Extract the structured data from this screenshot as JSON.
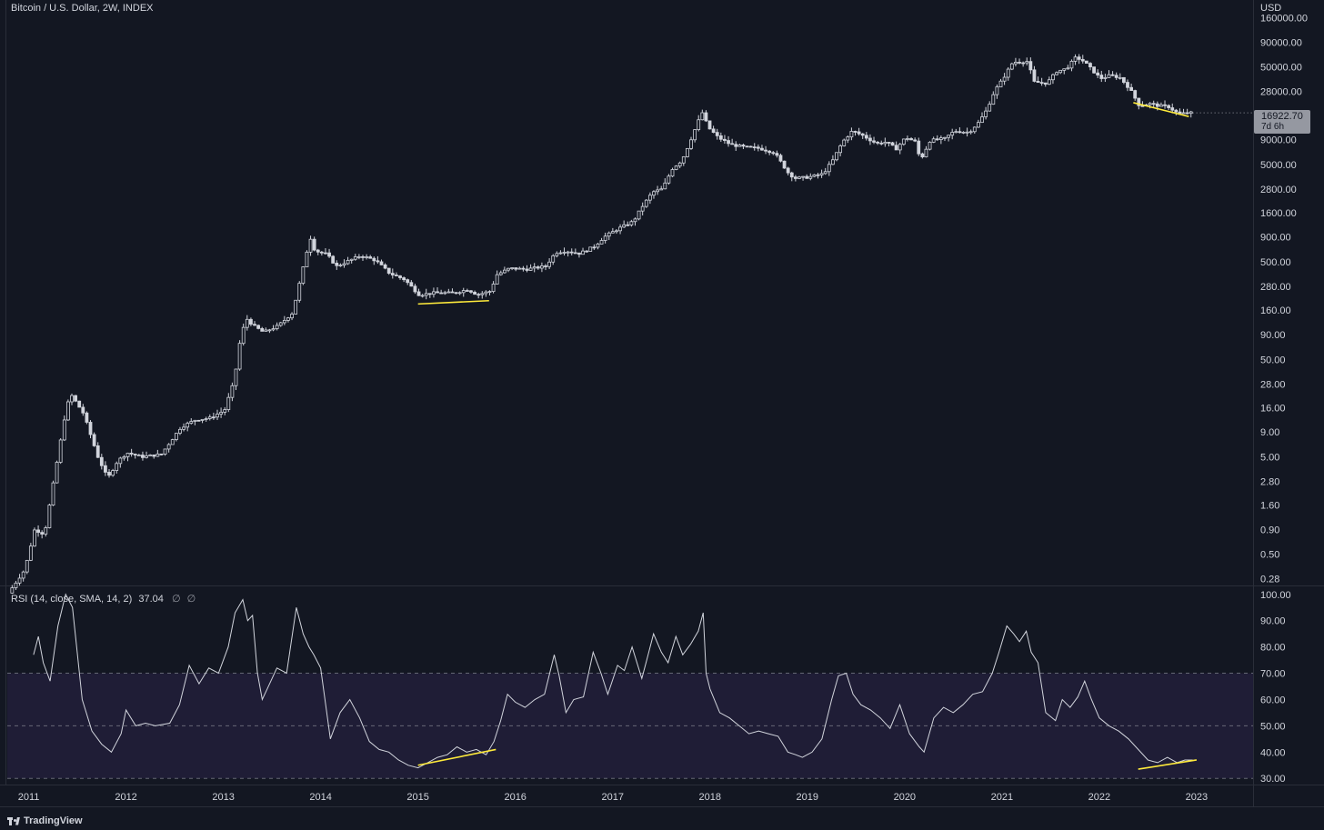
{
  "header": {
    "symbol_title": "Bitcoin / U.S. Dollar, 2W, INDEX",
    "currency": "USD"
  },
  "price_badge": {
    "price": "16922.70",
    "countdown": "7d 6h"
  },
  "rsi_header": {
    "label": "RSI (14, close, SMA, 14, 2)",
    "value": "37.04",
    "null1": "∅",
    "null2": "∅"
  },
  "footer": {
    "brand": "TradingView"
  },
  "colors": {
    "background": "#131722",
    "candle": "#d1d4dc",
    "trendline": "#ffeb3b",
    "rsi_band": "#1f1d36",
    "rsi_line": "#d1d4dc",
    "grid_dashed": "#787b86"
  },
  "chart_data": [
    {
      "type": "candlestick",
      "title": "Bitcoin / U.S. Dollar, 2W, INDEX",
      "x_axis_labels": [
        "2011",
        "2012",
        "2013",
        "2014",
        "2015",
        "2016",
        "2017",
        "2018",
        "2019",
        "2020",
        "2021",
        "2022",
        "2023"
      ],
      "y_axis_labels": [
        "160000.00",
        "90000.00",
        "50000.00",
        "28000.00",
        "16922.70",
        "9000.00",
        "5000.00",
        "2800.00",
        "1600.00",
        "900.00",
        "500.00",
        "280.00",
        "160.00",
        "90.00",
        "50.00",
        "28.00",
        "16.00",
        "9.00",
        "5.00",
        "2.80",
        "1.60",
        "0.90",
        "0.50",
        "0.28"
      ],
      "y_scale": "log",
      "ylim": [
        0.25,
        180000
      ],
      "xlim": [
        2010.78,
        2023.58
      ],
      "last_price": 16922.7,
      "series": [
        {
          "name": "Bitcoin / U.S. Dollar",
          "price_path": [
            [
              2010.83,
              0.2
            ],
            [
              2011.0,
              0.35
            ],
            [
              2011.1,
              0.9
            ],
            [
              2011.2,
              0.8
            ],
            [
              2011.3,
              3.0
            ],
            [
              2011.42,
              15
            ],
            [
              2011.47,
              22
            ],
            [
              2011.6,
              14
            ],
            [
              2011.75,
              5
            ],
            [
              2011.85,
              3.0
            ],
            [
              2011.95,
              4.5
            ],
            [
              2012.05,
              5.5
            ],
            [
              2012.2,
              5.0
            ],
            [
              2012.4,
              5.3
            ],
            [
              2012.6,
              10
            ],
            [
              2012.75,
              12
            ],
            [
              2012.9,
              12.5
            ],
            [
              2013.05,
              15
            ],
            [
              2013.15,
              30
            ],
            [
              2013.22,
              90
            ],
            [
              2013.28,
              130
            ],
            [
              2013.35,
              110
            ],
            [
              2013.45,
              95
            ],
            [
              2013.6,
              110
            ],
            [
              2013.75,
              150
            ],
            [
              2013.85,
              400
            ],
            [
              2013.93,
              900
            ],
            [
              2013.98,
              650
            ],
            [
              2014.1,
              600
            ],
            [
              2014.2,
              450
            ],
            [
              2014.3,
              500
            ],
            [
              2014.45,
              580
            ],
            [
              2014.6,
              520
            ],
            [
              2014.75,
              380
            ],
            [
              2014.9,
              330
            ],
            [
              2015.05,
              230
            ],
            [
              2015.2,
              240
            ],
            [
              2015.4,
              240
            ],
            [
              2015.55,
              260
            ],
            [
              2015.65,
              230
            ],
            [
              2015.78,
              250
            ],
            [
              2015.85,
              370
            ],
            [
              2015.98,
              430
            ],
            [
              2016.15,
              420
            ],
            [
              2016.35,
              450
            ],
            [
              2016.45,
              620
            ],
            [
              2016.55,
              650
            ],
            [
              2016.7,
              610
            ],
            [
              2016.85,
              720
            ],
            [
              2016.95,
              900
            ],
            [
              2017.1,
              1100
            ],
            [
              2017.25,
              1300
            ],
            [
              2017.35,
              1900
            ],
            [
              2017.45,
              2600
            ],
            [
              2017.55,
              2800
            ],
            [
              2017.65,
              4500
            ],
            [
              2017.75,
              5500
            ],
            [
              2017.82,
              8000
            ],
            [
              2017.92,
              14000
            ],
            [
              2017.96,
              17000
            ],
            [
              2018.02,
              12000
            ],
            [
              2018.12,
              9500
            ],
            [
              2018.25,
              8000
            ],
            [
              2018.4,
              7500
            ],
            [
              2018.55,
              7300
            ],
            [
              2018.7,
              6600
            ],
            [
              2018.85,
              4000
            ],
            [
              2018.92,
              3600
            ],
            [
              2019.05,
              3700
            ],
            [
              2019.2,
              4000
            ],
            [
              2019.3,
              5500
            ],
            [
              2019.4,
              8500
            ],
            [
              2019.5,
              11000
            ],
            [
              2019.6,
              10000
            ],
            [
              2019.75,
              8200
            ],
            [
              2019.85,
              8500
            ],
            [
              2019.95,
              7200
            ],
            [
              2020.05,
              9500
            ],
            [
              2020.15,
              8500
            ],
            [
              2020.2,
              5500
            ],
            [
              2020.3,
              8800
            ],
            [
              2020.45,
              9200
            ],
            [
              2020.55,
              11000
            ],
            [
              2020.7,
              10700
            ],
            [
              2020.8,
              13500
            ],
            [
              2020.88,
              18000
            ],
            [
              2020.96,
              28000
            ],
            [
              2021.05,
              38000
            ],
            [
              2021.15,
              56000
            ],
            [
              2021.3,
              57000
            ],
            [
              2021.37,
              35000
            ],
            [
              2021.5,
              34000
            ],
            [
              2021.6,
              45000
            ],
            [
              2021.7,
              48000
            ],
            [
              2021.8,
              63000
            ],
            [
              2021.88,
              57000
            ],
            [
              2021.97,
              46000
            ],
            [
              2022.05,
              38000
            ],
            [
              2022.15,
              41000
            ],
            [
              2022.25,
              39000
            ],
            [
              2022.35,
              30000
            ],
            [
              2022.45,
              20000
            ],
            [
              2022.55,
              21000
            ],
            [
              2022.65,
              20000
            ],
            [
              2022.75,
              19500
            ],
            [
              2022.85,
              16500
            ],
            [
              2022.96,
              16900
            ]
          ]
        },
        {
          "name": "Trendline 2015",
          "points": [
            [
              2015.0,
              185
            ],
            [
              2015.73,
              200
            ]
          ]
        },
        {
          "name": "Trendline 2022",
          "points": [
            [
              2022.35,
              21500
            ],
            [
              2022.92,
              15500
            ]
          ]
        }
      ]
    },
    {
      "type": "line",
      "title": "RSI (14, close, SMA, 14, 2)",
      "y_axis_labels": [
        "100.00",
        "90.00",
        "80.00",
        "70.00",
        "60.00",
        "50.00",
        "40.00",
        "30.00"
      ],
      "ylim": [
        28,
        102
      ],
      "band": [
        30,
        70
      ],
      "midline": 50,
      "last_value": 37.04,
      "series": [
        {
          "name": "RSI",
          "x": [
            2011.05,
            2011.1,
            2011.15,
            2011.22,
            2011.3,
            2011.38,
            2011.45,
            2011.55,
            2011.65,
            2011.75,
            2011.85,
            2011.95,
            2012.0,
            2012.1,
            2012.2,
            2012.3,
            2012.45,
            2012.55,
            2012.65,
            2012.75,
            2012.85,
            2012.95,
            2013.05,
            2013.12,
            2013.2,
            2013.25,
            2013.3,
            2013.35,
            2013.4,
            2013.45,
            2013.55,
            2013.65,
            2013.75,
            2013.82,
            2013.88,
            2013.93,
            2014.0,
            2014.1,
            2014.2,
            2014.3,
            2014.4,
            2014.5,
            2014.6,
            2014.7,
            2014.8,
            2014.9,
            2015.0,
            2015.1,
            2015.2,
            2015.3,
            2015.4,
            2015.5,
            2015.6,
            2015.7,
            2015.78,
            2015.85,
            2015.92,
            2016.0,
            2016.1,
            2016.2,
            2016.3,
            2016.4,
            2016.45,
            2016.52,
            2016.6,
            2016.7,
            2016.8,
            2016.88,
            2016.95,
            2017.05,
            2017.12,
            2017.2,
            2017.3,
            2017.35,
            2017.42,
            2017.5,
            2017.57,
            2017.65,
            2017.72,
            2017.8,
            2017.88,
            2017.93,
            2017.96,
            2018.0,
            2018.1,
            2018.2,
            2018.3,
            2018.4,
            2018.5,
            2018.6,
            2018.7,
            2018.8,
            2018.88,
            2018.95,
            2019.05,
            2019.15,
            2019.25,
            2019.32,
            2019.4,
            2019.47,
            2019.55,
            2019.65,
            2019.75,
            2019.85,
            2019.95,
            2020.05,
            2020.15,
            2020.2,
            2020.3,
            2020.4,
            2020.5,
            2020.6,
            2020.7,
            2020.8,
            2020.9,
            2020.97,
            2021.05,
            2021.12,
            2021.18,
            2021.25,
            2021.3,
            2021.37,
            2021.45,
            2021.55,
            2021.62,
            2021.7,
            2021.78,
            2021.85,
            2021.92,
            2022.0,
            2022.1,
            2022.2,
            2022.3,
            2022.4,
            2022.5,
            2022.6,
            2022.7,
            2022.8,
            2022.88,
            2022.96
          ],
          "values": [
            77,
            84,
            74,
            67,
            88,
            100,
            95,
            60,
            48,
            43,
            40,
            47,
            56,
            50,
            51,
            50,
            51,
            58,
            73,
            66,
            72,
            70,
            80,
            93,
            98,
            90,
            92,
            70,
            60,
            64,
            72,
            70,
            95,
            85,
            80,
            77,
            72,
            45,
            55,
            60,
            53,
            44,
            41,
            40,
            37,
            35,
            34,
            36,
            38,
            39,
            42,
            40,
            41,
            39,
            44,
            52,
            62,
            59,
            57,
            60,
            62,
            77,
            69,
            55,
            60,
            61,
            78,
            70,
            62,
            73,
            71,
            80,
            68,
            75,
            85,
            78,
            74,
            84,
            77,
            81,
            86,
            93,
            70,
            64,
            55,
            53,
            50,
            47,
            48,
            47,
            46,
            40,
            39,
            38,
            40,
            45,
            60,
            69,
            70,
            62,
            58,
            56,
            53,
            49,
            58,
            47,
            42,
            40,
            53,
            57,
            55,
            58,
            62,
            63,
            70,
            78,
            88,
            85,
            82,
            86,
            78,
            74,
            55,
            52,
            60,
            57,
            61,
            67,
            60,
            53,
            50,
            48,
            45,
            41,
            37,
            36,
            38,
            36,
            37,
            37
          ]
        },
        {
          "name": "Trendline 2015",
          "points": [
            [
              2015.0,
              35
            ],
            [
              2015.8,
              41
            ]
          ]
        },
        {
          "name": "Trendline 2022",
          "points": [
            [
              2022.4,
              33.5
            ],
            [
              2023.0,
              37
            ]
          ]
        }
      ]
    }
  ]
}
